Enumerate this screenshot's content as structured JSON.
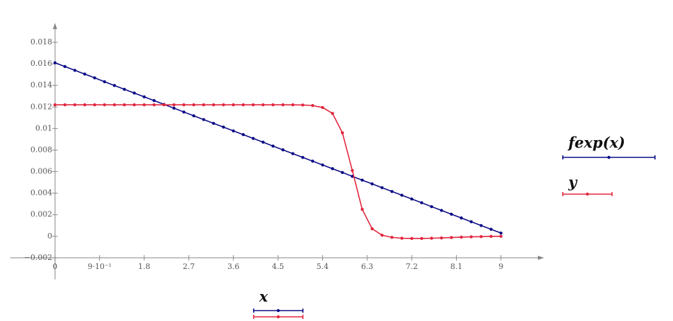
{
  "chart_data": {
    "type": "line",
    "x": [
      0,
      0.2,
      0.4,
      0.6,
      0.8,
      1,
      1.2,
      1.4,
      1.6,
      1.8,
      2,
      2.2,
      2.4,
      2.6,
      2.8,
      3,
      3.2,
      3.4,
      3.6,
      3.8,
      4,
      4.2,
      4.4,
      4.6,
      4.8,
      5,
      5.2,
      5.4,
      5.6,
      5.8,
      6,
      6.2,
      6.4,
      6.6,
      6.8,
      7,
      7.2,
      7.4,
      7.6,
      7.8,
      8,
      8.2,
      8.4,
      8.6,
      8.8,
      9
    ],
    "series": [
      {
        "name": "fexp(x)",
        "color": "#0b0b86",
        "values": [
          0.0161,
          0.01575,
          0.0154,
          0.01505,
          0.0147,
          0.01434,
          0.01399,
          0.01364,
          0.01329,
          0.01294,
          0.01259,
          0.01224,
          0.01189,
          0.01153,
          0.01118,
          0.01083,
          0.01048,
          0.01013,
          0.00978,
          0.00943,
          0.00908,
          0.00873,
          0.00837,
          0.00802,
          0.00767,
          0.00732,
          0.00697,
          0.00662,
          0.00627,
          0.00592,
          0.00556,
          0.00521,
          0.00486,
          0.00451,
          0.00416,
          0.00381,
          0.00346,
          0.00311,
          0.00275,
          0.0024,
          0.00205,
          0.0017,
          0.00135,
          0.001,
          0.00065,
          0.0003
        ]
      },
      {
        "name": "y",
        "color": "#e2253c",
        "values": [
          0.0122,
          0.0122,
          0.0122,
          0.0122,
          0.0122,
          0.0122,
          0.0122,
          0.0122,
          0.0122,
          0.0122,
          0.0122,
          0.0122,
          0.0122,
          0.0122,
          0.0122,
          0.0122,
          0.0122,
          0.0122,
          0.0122,
          0.0122,
          0.0122,
          0.0122,
          0.0122,
          0.0122,
          0.0122,
          0.01218,
          0.01213,
          0.01195,
          0.0114,
          0.0096,
          0.0061,
          0.0025,
          0.0007,
          0.0001,
          -0.0001,
          -0.00018,
          -0.0002,
          -0.0002,
          -0.00018,
          -0.00015,
          -0.00011,
          -8e-05,
          -5e-05,
          -3e-05,
          -1e-05,
          0
        ]
      }
    ],
    "x_label": "x",
    "xlim": [
      -0.9,
      9.87
    ],
    "ylim": [
      -0.004,
      0.0198
    ],
    "xticks": [
      0,
      {
        "value": 0.9,
        "label": "9·10⁻¹"
      },
      1.8,
      2.7,
      3.6,
      4.5,
      5.4,
      6.3,
      7.2,
      8.1,
      9
    ],
    "yticks": [
      {
        "value": -0.002,
        "label": "−0.002"
      },
      0,
      0.002,
      0.004,
      0.006,
      0.008,
      0.01,
      0.012,
      0.014,
      0.016,
      0.018
    ]
  }
}
